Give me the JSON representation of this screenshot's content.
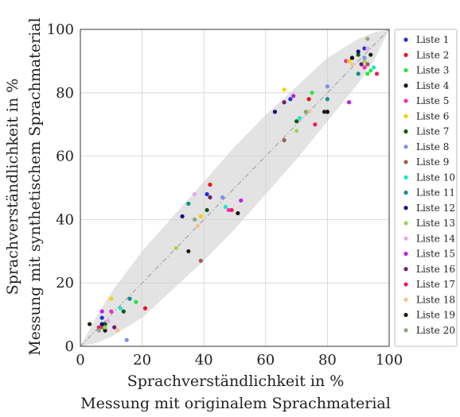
{
  "chart_data": {
    "type": "scatter",
    "xlabel": [
      "Sprachverständlichkeit in %",
      "Messung mit originalem Sprachmaterial"
    ],
    "ylabel": [
      "Sprachverständlichkeit in %",
      "Messung mit synthetischem Sprachmaterial"
    ],
    "xlim": [
      0,
      100
    ],
    "ylim": [
      0,
      100
    ],
    "xticks": [
      0,
      20,
      40,
      60,
      80,
      100
    ],
    "yticks": [
      0,
      20,
      40,
      60,
      80,
      100
    ],
    "grid": true,
    "legend_position": "right",
    "reference_line": {
      "x": [
        0,
        100
      ],
      "y": [
        0,
        100
      ],
      "style": "dash-dot",
      "color": "#999999"
    },
    "confidence_band": {
      "x": [
        0,
        5,
        10,
        20,
        30,
        40,
        50,
        60,
        70,
        80,
        90,
        95,
        100
      ],
      "lower": [
        0,
        1,
        3,
        9,
        18,
        27,
        37,
        48,
        59,
        71,
        83,
        90,
        100
      ],
      "upper": [
        0,
        9,
        17,
        30,
        41,
        52,
        63,
        73,
        82,
        91,
        97,
        99,
        100
      ],
      "color": "#e3e3e3"
    },
    "series": [
      {
        "name": "Liste 1",
        "color": "#1f2fd8",
        "points": [
          [
            7,
            9
          ],
          [
            41,
            48
          ],
          [
            68,
            78
          ],
          [
            92,
            94
          ]
        ]
      },
      {
        "name": "Liste 2",
        "color": "#e8141b",
        "points": [
          [
            21,
            12
          ],
          [
            42,
            51
          ],
          [
            74,
            78
          ],
          [
            88,
            91
          ]
        ]
      },
      {
        "name": "Liste 3",
        "color": "#2ee23e",
        "points": [
          [
            18,
            14
          ],
          [
            75,
            80
          ],
          [
            93,
            86
          ],
          [
            94,
            87
          ]
        ]
      },
      {
        "name": "Liste 4",
        "color": "#111111",
        "points": [
          [
            8,
            5
          ],
          [
            51,
            42
          ],
          [
            80,
            74
          ],
          [
            88,
            91
          ]
        ]
      },
      {
        "name": "Liste 5",
        "color": "#ee2fb9",
        "points": [
          [
            10,
            11
          ],
          [
            48,
            43
          ],
          [
            86,
            90
          ],
          [
            92,
            88
          ]
        ]
      },
      {
        "name": "Liste 6",
        "color": "#f2d20c",
        "points": [
          [
            10,
            15
          ],
          [
            39,
            41
          ],
          [
            66,
            81
          ],
          [
            87,
            90
          ]
        ]
      },
      {
        "name": "Liste 7",
        "color": "#0d5a12",
        "points": [
          [
            8,
            7
          ],
          [
            14,
            11
          ],
          [
            41,
            43
          ],
          [
            70,
            71
          ],
          [
            90,
            92
          ]
        ]
      },
      {
        "name": "Liste 8",
        "color": "#7f8ff2",
        "points": [
          [
            15,
            2
          ],
          [
            46,
            47
          ],
          [
            80,
            82
          ],
          [
            92,
            91
          ]
        ]
      },
      {
        "name": "Liste 9",
        "color": "#a35c4c",
        "points": [
          [
            7,
            6
          ],
          [
            39,
            27
          ],
          [
            66,
            65
          ],
          [
            93,
            89
          ]
        ]
      },
      {
        "name": "Liste 10",
        "color": "#18e8c8",
        "points": [
          [
            13,
            12
          ],
          [
            47,
            44
          ],
          [
            71,
            72
          ],
          [
            95,
            88
          ]
        ]
      },
      {
        "name": "Liste 11",
        "color": "#138d8e",
        "points": [
          [
            16,
            15
          ],
          [
            35,
            45
          ],
          [
            80,
            78
          ],
          [
            90,
            86
          ]
        ]
      },
      {
        "name": "Liste 12",
        "color": "#0d0d7a",
        "points": [
          [
            7,
            7
          ],
          [
            33,
            41
          ],
          [
            63,
            74
          ],
          [
            90,
            93
          ]
        ]
      },
      {
        "name": "Liste 13",
        "color": "#9cd45a",
        "points": [
          [
            8,
            6
          ],
          [
            31,
            31
          ],
          [
            70,
            68
          ],
          [
            92,
            90
          ]
        ]
      },
      {
        "name": "Liste 14",
        "color": "#eda8ea",
        "points": [
          [
            9,
            8
          ],
          [
            37,
            48
          ],
          [
            69,
            79
          ],
          [
            93,
            94
          ]
        ]
      },
      {
        "name": "Liste 15",
        "color": "#bd20ea",
        "points": [
          [
            7,
            11
          ],
          [
            52,
            46
          ],
          [
            69,
            79
          ],
          [
            87,
            77
          ]
        ]
      },
      {
        "name": "Liste 16",
        "color": "#6e1f66",
        "points": [
          [
            11,
            6
          ],
          [
            42,
            47
          ],
          [
            66,
            77
          ],
          [
            91,
            89
          ]
        ]
      },
      {
        "name": "Liste 17",
        "color": "#f01b5a",
        "points": [
          [
            6,
            6
          ],
          [
            49,
            43
          ],
          [
            76,
            70
          ],
          [
            96,
            86
          ]
        ]
      },
      {
        "name": "Liste 18",
        "color": "#f4c48b",
        "points": [
          [
            12,
            5
          ],
          [
            38,
            38
          ],
          [
            74,
            74
          ],
          [
            88,
            89
          ]
        ]
      },
      {
        "name": "Liste 19",
        "color": "#1f1f0d",
        "points": [
          [
            3,
            7
          ],
          [
            35,
            30
          ],
          [
            79,
            74
          ],
          [
            94,
            92
          ]
        ]
      },
      {
        "name": "Liste 20",
        "color": "#8aa87a",
        "points": [
          [
            6,
            5
          ],
          [
            37,
            40
          ],
          [
            73,
            74
          ],
          [
            93,
            97
          ]
        ]
      }
    ]
  }
}
